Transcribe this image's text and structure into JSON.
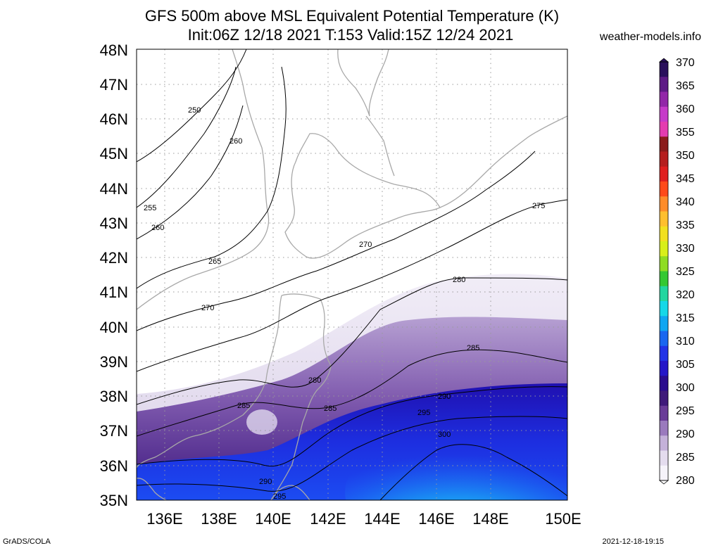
{
  "header": {
    "title_line1": "GFS 500m above MSL Equivalent Potential Temperature (K)",
    "title_line2": "Init:06Z 12/18 2021 T:153 Valid:15Z 12/24 2021",
    "site": "weather-models.info"
  },
  "footer": {
    "left": "GrADS/COLA",
    "right": "2021-12-18-19:15"
  },
  "axes": {
    "lat_labels": [
      "48N",
      "47N",
      "46N",
      "45N",
      "44N",
      "43N",
      "42N",
      "41N",
      "40N",
      "39N",
      "38N",
      "37N",
      "36N",
      "35N"
    ],
    "lon_labels": [
      "136E",
      "138E",
      "140E",
      "142E",
      "144E",
      "146E",
      "148E",
      "150E"
    ]
  },
  "colorbar": {
    "labels": [
      "370",
      "365",
      "360",
      "355",
      "350",
      "345",
      "340",
      "335",
      "330",
      "325",
      "320",
      "315",
      "310",
      "305",
      "300",
      "295",
      "290",
      "285",
      "280"
    ],
    "colors": [
      "#2a0f5c",
      "#5e1a86",
      "#9226a8",
      "#c63bc9",
      "#e43cb0",
      "#8b1c1c",
      "#b51f1f",
      "#e02020",
      "#ff4a1a",
      "#ff8c2a",
      "#ffbf2e",
      "#f2e020",
      "#d8ef1a",
      "#8fdc22",
      "#34c832",
      "#22d6a0",
      "#16d8e8",
      "#10a6f2",
      "#1a66f0",
      "#2233e6",
      "#2416c8",
      "#2a0c8e",
      "#3f1a7a",
      "#6a3c98",
      "#9a7abd",
      "#c4b1d9",
      "#e4dcee",
      "#f6f3fa"
    ]
  },
  "contours": {
    "labels": [
      {
        "text": "250"
      },
      {
        "text": "260"
      },
      {
        "text": "255"
      },
      {
        "text": "260"
      },
      {
        "text": "265"
      },
      {
        "text": "270"
      },
      {
        "text": "270"
      },
      {
        "text": "275"
      },
      {
        "text": "280"
      },
      {
        "text": "285"
      },
      {
        "text": "280"
      },
      {
        "text": "285"
      },
      {
        "text": "285"
      },
      {
        "text": "290"
      },
      {
        "text": "295"
      },
      {
        "text": "300"
      },
      {
        "text": "290"
      },
      {
        "text": "295"
      }
    ]
  }
}
